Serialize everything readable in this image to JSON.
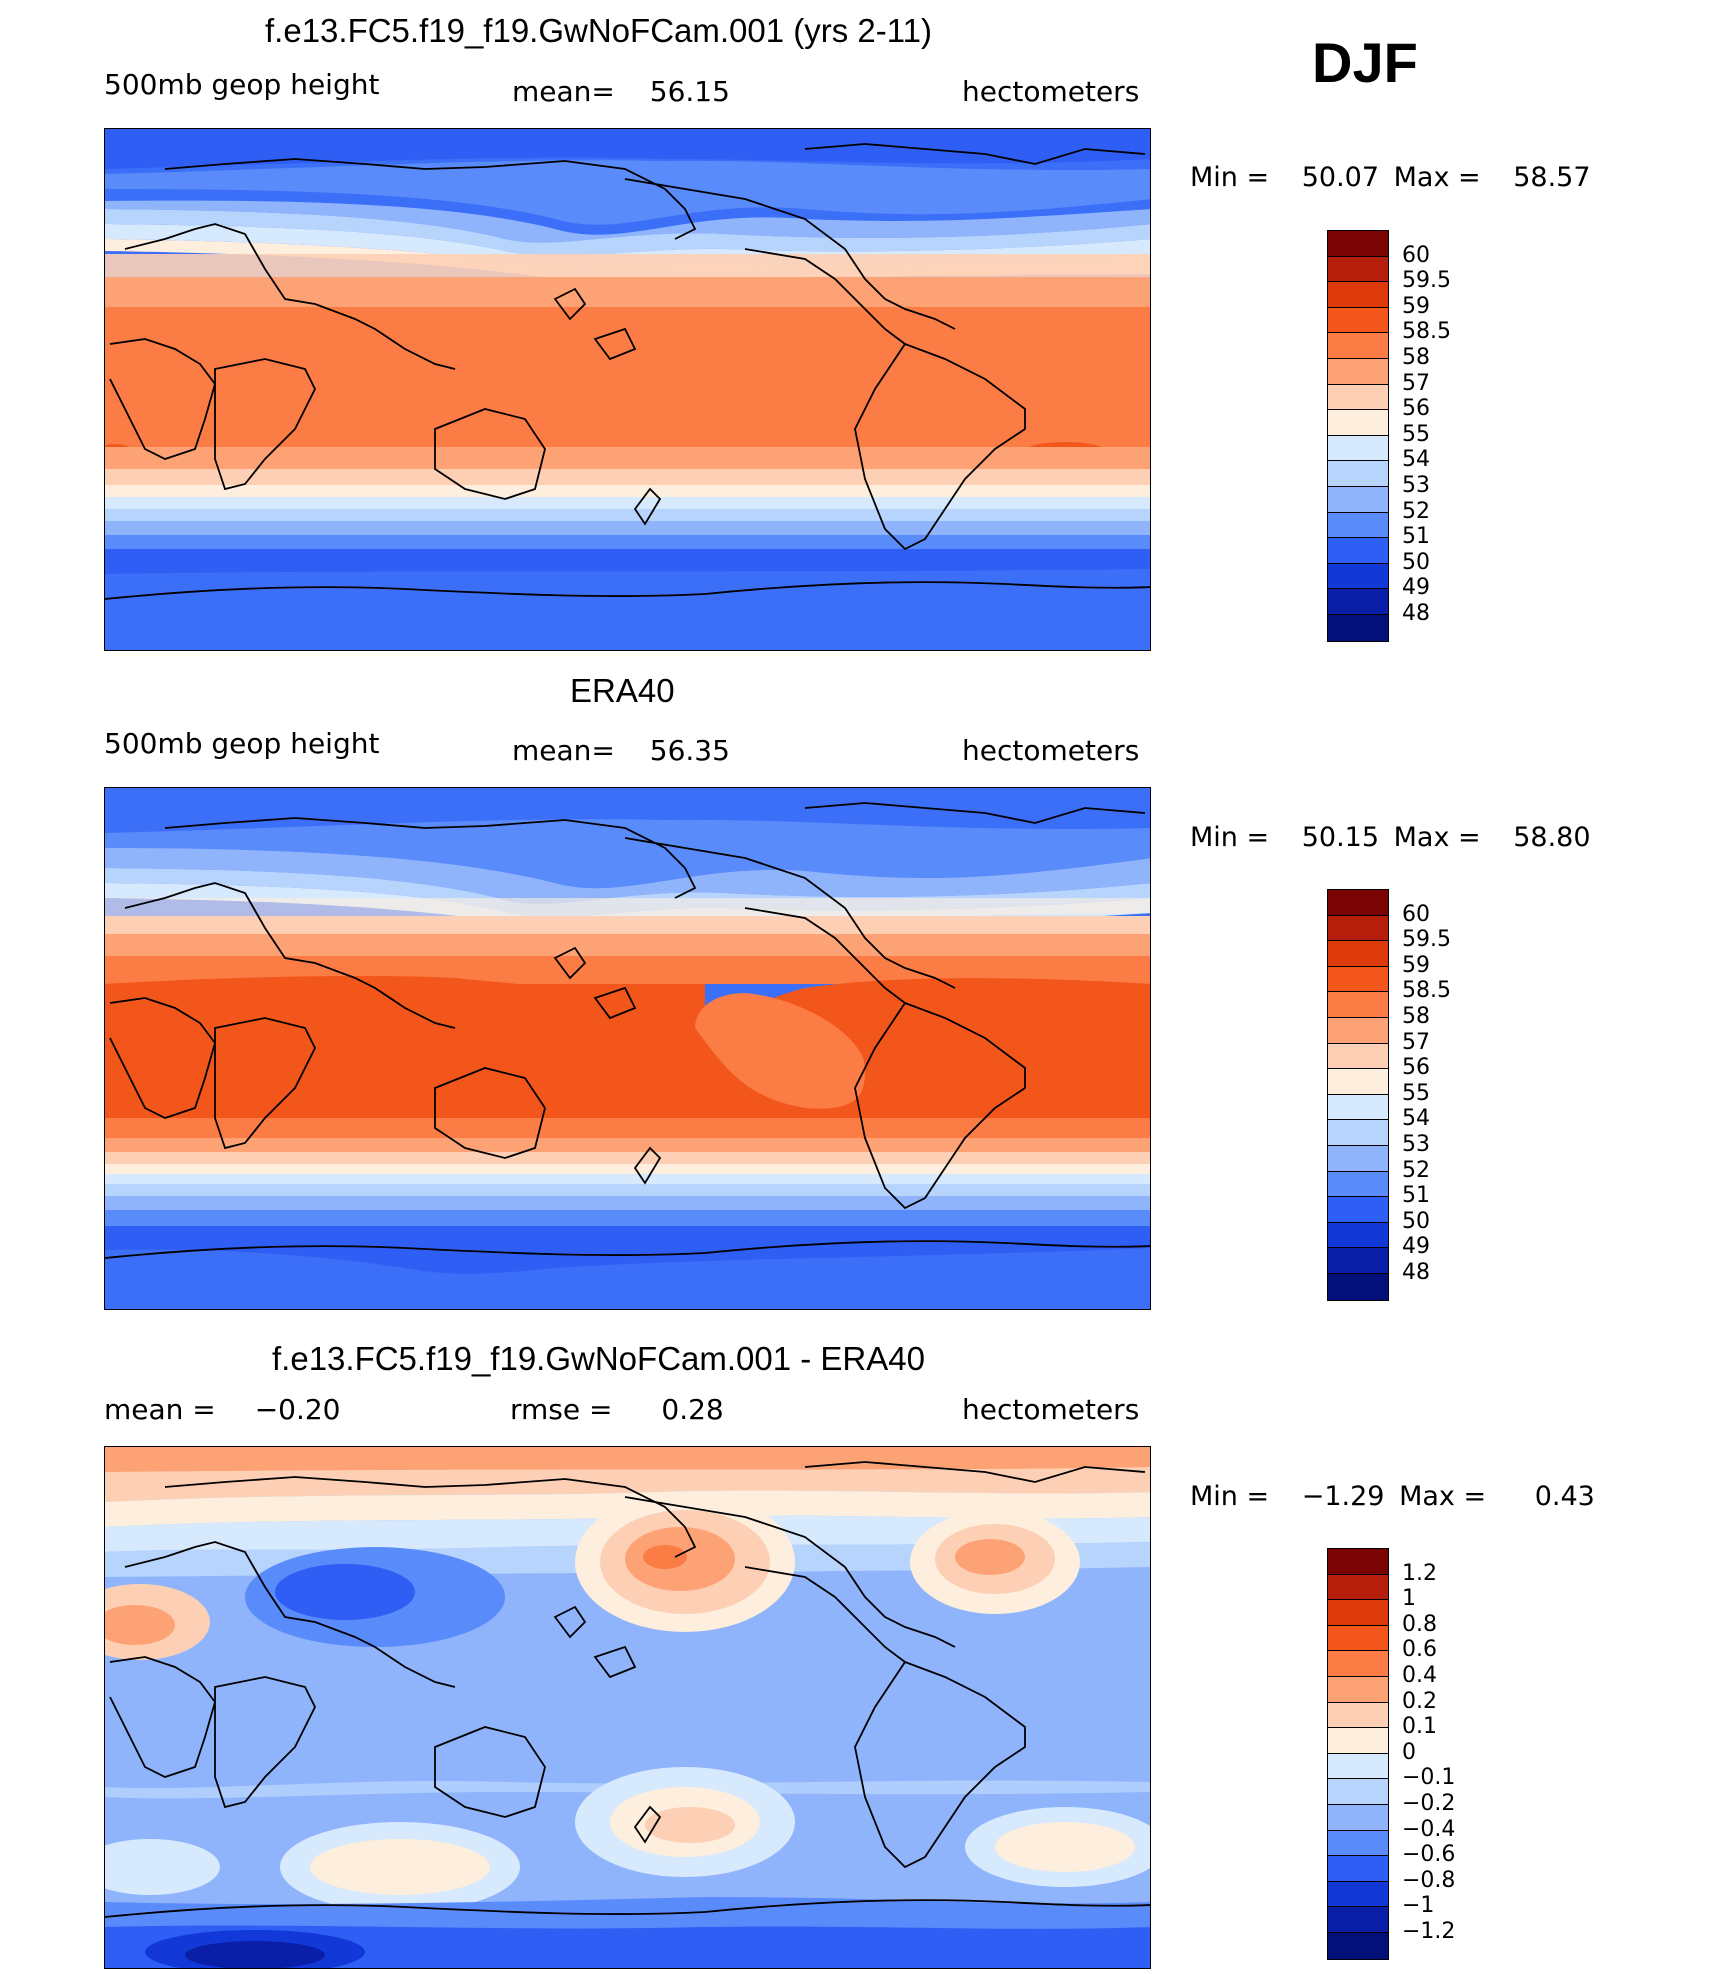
{
  "season": "DJF",
  "units": "hectometers",
  "panels": [
    {
      "title": "f.e13.FC5.f19_f19.GwNoFCam.001 (yrs 2-11)",
      "variable": "500mb geop height",
      "stat1_label": "mean=",
      "stat1_value": "56.15",
      "units": "hectometers",
      "min_label": "Min =",
      "min_value": "50.07",
      "max_label": "Max =",
      "max_value": "58.57",
      "colorbar_labels": [
        "60",
        "59.5",
        "59",
        "58.5",
        "58",
        "57",
        "56",
        "55",
        "54",
        "53",
        "52",
        "51",
        "50",
        "49",
        "48"
      ]
    },
    {
      "title": "ERA40",
      "variable": "500mb geop height",
      "stat1_label": "mean=",
      "stat1_value": "56.35",
      "units": "hectometers",
      "min_label": "Min =",
      "min_value": "50.15",
      "max_label": "Max =",
      "max_value": "58.80",
      "colorbar_labels": [
        "60",
        "59.5",
        "59",
        "58.5",
        "58",
        "57",
        "56",
        "55",
        "54",
        "53",
        "52",
        "51",
        "50",
        "49",
        "48"
      ]
    },
    {
      "title": "f.e13.FC5.f19_f19.GwNoFCam.001 - ERA40",
      "stat1_label": "mean =",
      "stat1_value": "−0.20",
      "stat2_label": "rmse =",
      "stat2_value": "0.28",
      "units": "hectometers",
      "min_label": "Min =",
      "min_value": "−1.29",
      "max_label": "Max =",
      "max_value": "0.43",
      "colorbar_labels": [
        "1.2",
        "1",
        "0.8",
        "0.6",
        "0.4",
        "0.2",
        "0.1",
        "0",
        "−0.1",
        "−0.2",
        "−0.4",
        "−0.6",
        "−0.8",
        "−1",
        "−1.2"
      ]
    }
  ],
  "colors": {
    "abs_scale": [
      "#7a0403",
      "#b51e0b",
      "#dd3a0b",
      "#f2561b",
      "#fb7c45",
      "#fca274",
      "#fdd0b5",
      "#fdeedd",
      "#d7e9fd",
      "#b7d4fd",
      "#8fb4fc",
      "#5a8bfa",
      "#2f5ef5",
      "#1238d8",
      "#0a1ea8",
      "#04107a"
    ],
    "diff_scale": [
      "#7a0403",
      "#b51e0b",
      "#dd3a0b",
      "#f2561b",
      "#fb7c45",
      "#fca274",
      "#fdd0b5",
      "#fdeedd",
      "#d7e9fd",
      "#b7d4fd",
      "#8fb4fc",
      "#5a8bfa",
      "#2f5ef5",
      "#1238d8",
      "#0a1ea8",
      "#04107a"
    ]
  }
}
